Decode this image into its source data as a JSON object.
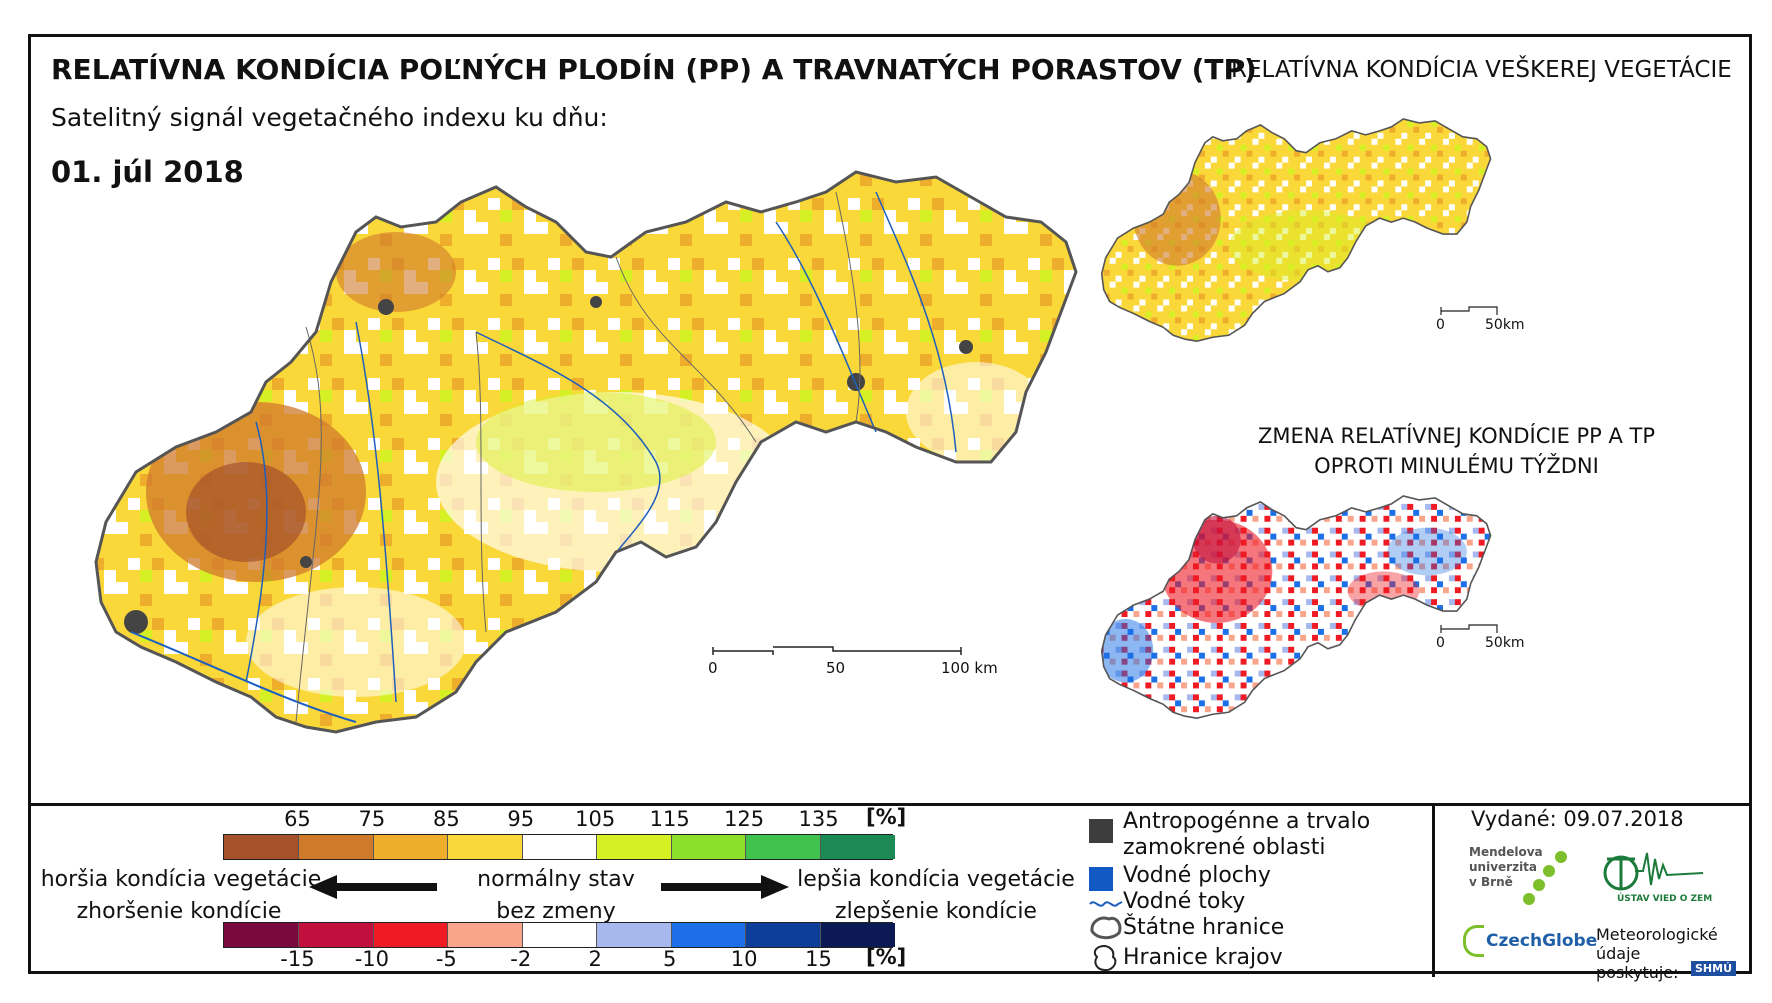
{
  "header": {
    "title": "RELATÍVNA KONDÍCIA POĽNÝCH PLODÍN (PP) A TRAVNATÝCH PORASTOV (TP)",
    "subtitle": "Satelitný signál vegetačného indexu ku dňu:",
    "date": "01. júl 2018",
    "right_title": "RELATÍVNA KONDÍCIA VEŠKEREJ VEGETÁCIE",
    "change_title_line1": "ZMENA RELATÍVNEJ KONDÍCIE PP A TP",
    "change_title_line2": "OPROTI MINULÉMU TÝŽDNI"
  },
  "scalebars": {
    "main": [
      "0",
      "50",
      "100 km"
    ],
    "small": [
      "0",
      "50km"
    ]
  },
  "legend": {
    "condition": {
      "ticks": [
        "65",
        "75",
        "85",
        "95",
        "105",
        "115",
        "125",
        "135"
      ],
      "unit": "[%]",
      "colors": [
        "#a5522a",
        "#cf7a2b",
        "#efad2c",
        "#fbd839",
        "#ffffff",
        "#d6f023",
        "#8de02a",
        "#3fc24e",
        "#1b8a55"
      ]
    },
    "change": {
      "ticks": [
        "-15",
        "-10",
        "-5",
        "-2",
        "2",
        "5",
        "10",
        "15"
      ],
      "unit": "[%]",
      "colors": [
        "#7a0a3e",
        "#c2103e",
        "#ee1b24",
        "#f9a58c",
        "#ffffff",
        "#a6b8ee",
        "#1c6fe6",
        "#0d3f9a",
        "#0b1a55"
      ]
    },
    "left_line1": "horšia kondícia vegetácie",
    "left_line2": "zhoršenie kondície",
    "mid_line1": "normálny stav",
    "mid_line2": "bez zmeny",
    "right_line1": "lepšia kondícia vegetácie",
    "right_line2": "zlepšenie kondície"
  },
  "key": {
    "antropo_line1": "Antropogénne a trvalo",
    "antropo_line2": "zamokrené oblasti",
    "water_bodies": "Vodné plochy",
    "rivers": "Vodné toky",
    "state_border": "Štátne hranice",
    "region_border": "Hranice krajov"
  },
  "credits": {
    "issued": "Vydané: 09.07.2018",
    "mendel": [
      "Mendelova",
      "univerzita",
      "v Brně"
    ],
    "ustav": "ÚSTAV VIED O ZEMI",
    "czechglobe": "CzechGlobe",
    "meteo": [
      "Meteorologické",
      "údaje",
      "poskytuje:"
    ],
    "shmu": "SHMÚ"
  }
}
